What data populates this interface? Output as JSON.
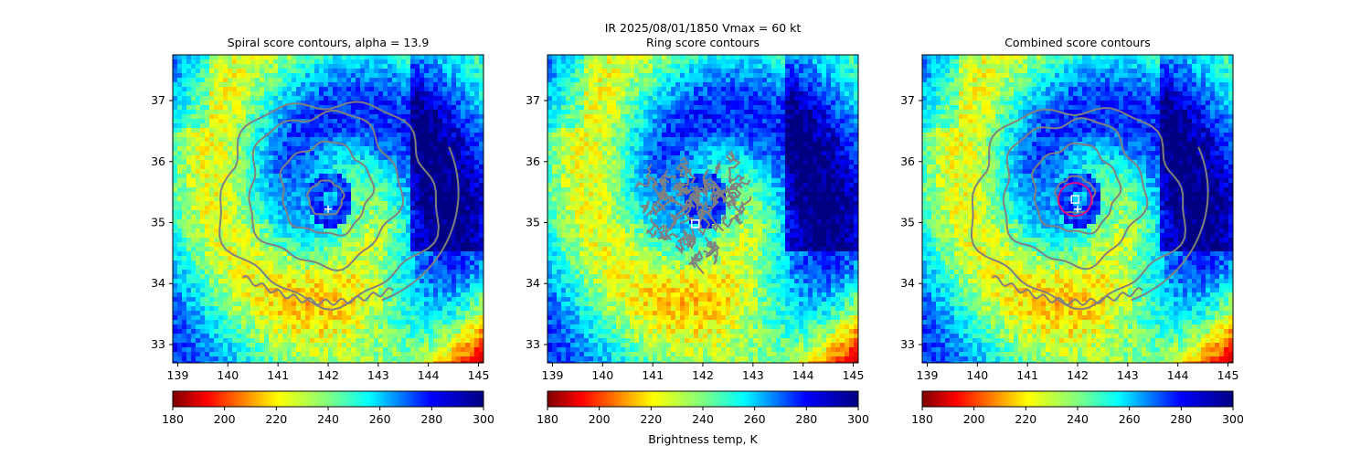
{
  "figure": {
    "suptitle_line1": "IR  2025/08/01/1850    Vmax = 60 kt",
    "colorbar_label": "Brightness temp, K"
  },
  "colors": {
    "contour": "#808080",
    "marker": "#ffffff",
    "ring": "#e6007e"
  },
  "chart_data": [
    {
      "type": "heatmap",
      "title": "Spiral score contours, alpha = 13.9",
      "xlim": [
        138.9,
        145.1
      ],
      "ylim": [
        32.7,
        37.75
      ],
      "xticks": [
        139,
        140,
        141,
        142,
        143,
        144,
        145
      ],
      "yticks": [
        33,
        34,
        35,
        36,
        37
      ],
      "colorbar": {
        "cmap": "jet_r",
        "range": [
          180,
          300
        ],
        "ticks": [
          180,
          200,
          220,
          240,
          260,
          280,
          300
        ]
      },
      "markers": [
        {
          "symbol": "plus",
          "x": 142.0,
          "y": 35.22
        }
      ],
      "contour_levels": [
        {
          "rx": 0.35,
          "ry": 0.28,
          "cx": 141.95,
          "cy": 35.4
        },
        {
          "rx": 0.9,
          "ry": 0.75,
          "cx": 141.95,
          "cy": 35.55
        },
        {
          "rx": 1.5,
          "ry": 1.25,
          "cx": 141.9,
          "cy": 35.55
        },
        {
          "rx": 2.15,
          "ry": 1.6,
          "cx": 142.0,
          "cy": 35.4
        }
      ]
    },
    {
      "type": "heatmap",
      "title": "Ring score contours",
      "xlim": [
        138.9,
        145.1
      ],
      "ylim": [
        32.7,
        37.75
      ],
      "xticks": [
        139,
        140,
        141,
        142,
        143,
        144,
        145
      ],
      "yticks": [
        33,
        34,
        35,
        36,
        37
      ],
      "colorbar": {
        "cmap": "jet_r",
        "range": [
          180,
          300
        ],
        "ticks": [
          180,
          200,
          220,
          240,
          260,
          280,
          300
        ]
      },
      "markers": [
        {
          "symbol": "square",
          "x": 141.85,
          "y": 34.98
        }
      ],
      "ring_cluster": {
        "cx": 141.9,
        "cy": 35.3,
        "rx": 1.0,
        "ry": 0.95
      }
    },
    {
      "type": "heatmap",
      "title": "Combined score contours",
      "xlim": [
        138.9,
        145.1
      ],
      "ylim": [
        32.7,
        37.75
      ],
      "xticks": [
        139,
        140,
        141,
        142,
        143,
        144,
        145
      ],
      "yticks": [
        33,
        34,
        35,
        36,
        37
      ],
      "colorbar": {
        "cmap": "jet_r",
        "range": [
          180,
          300
        ],
        "ticks": [
          180,
          200,
          220,
          240,
          260,
          280,
          300
        ]
      },
      "markers": [
        {
          "symbol": "square",
          "x": 141.95,
          "y": 35.38
        },
        {
          "symbol": "plus",
          "x": 142.0,
          "y": 35.22
        },
        {
          "symbol": "ring",
          "x": 141.95,
          "y": 35.38,
          "r": 0.33
        }
      ],
      "contour_levels": [
        {
          "rx": 0.38,
          "ry": 0.3,
          "cx": 141.95,
          "cy": 35.45
        },
        {
          "rx": 0.85,
          "ry": 0.72,
          "cx": 141.95,
          "cy": 35.55
        },
        {
          "rx": 1.4,
          "ry": 1.18,
          "cx": 141.9,
          "cy": 35.5
        },
        {
          "rx": 2.1,
          "ry": 1.55,
          "cx": 142.0,
          "cy": 35.35
        }
      ]
    }
  ]
}
